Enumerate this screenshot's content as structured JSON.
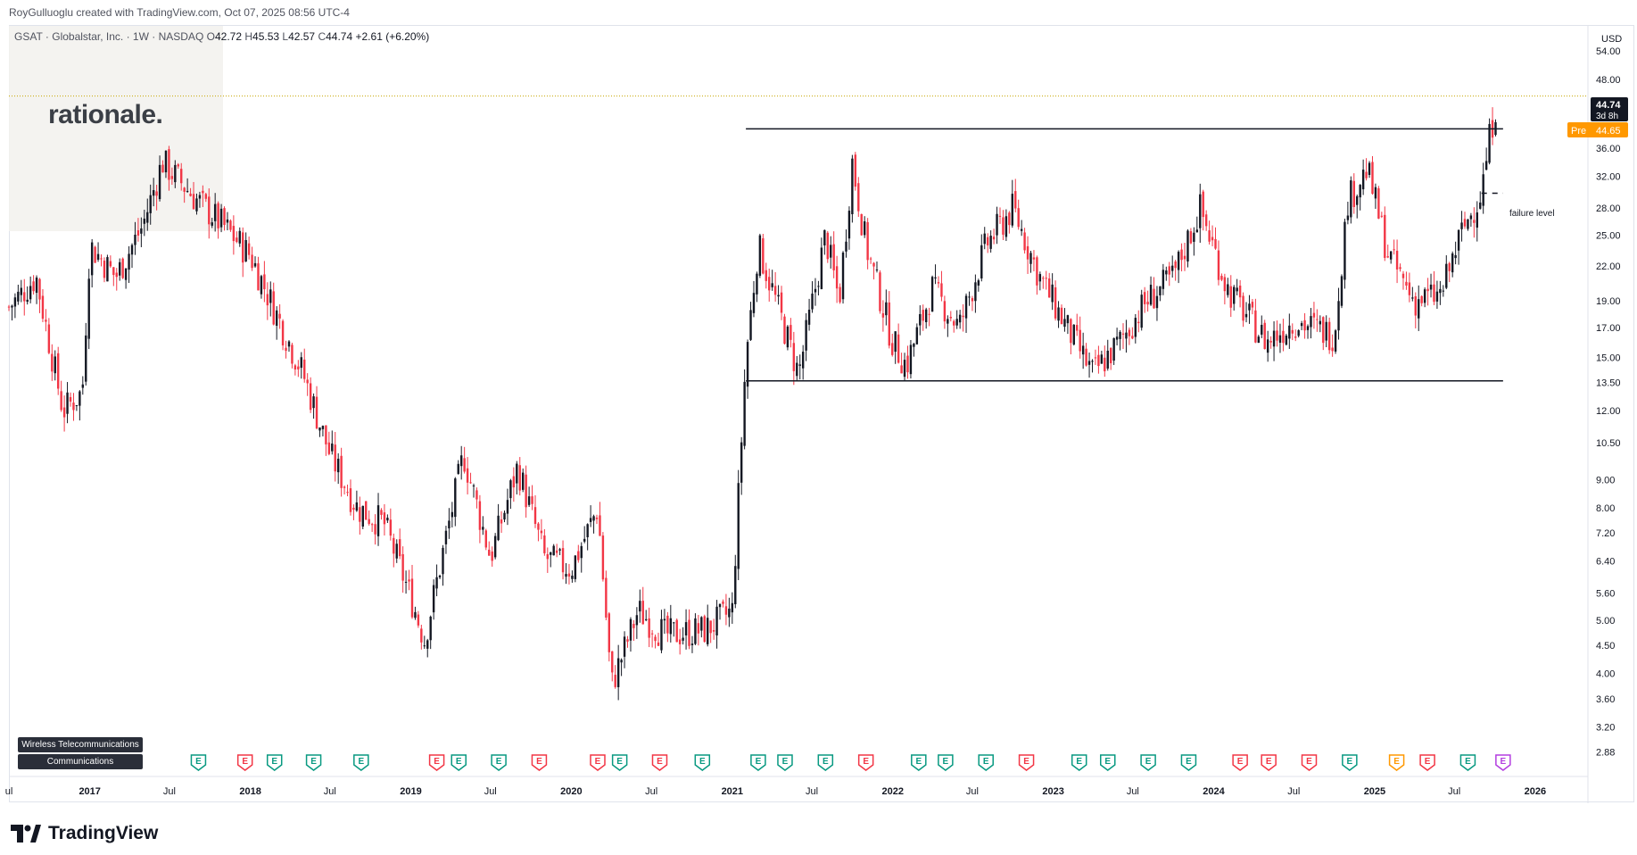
{
  "meta": {
    "created_line": "RoyGulluoglu created with TradingView.com, Oct 07, 2025 08:56 UTC-4"
  },
  "header": {
    "symbol": "GSAT · Globalstar, Inc. · 1W · NASDAQ",
    "open_label": "O",
    "open": "42.72",
    "high_label": "H",
    "high": "45.53",
    "low_label": "L",
    "low": "42.57",
    "close_label": "C",
    "close": "44.74",
    "change": "+2.61 (+6.20%)"
  },
  "watermark": {
    "text": "rationale."
  },
  "tags": [
    "Wireless Telecommunications",
    "Communications"
  ],
  "footer": {
    "brand": "TradingView"
  },
  "price_scale": {
    "currency": "USD",
    "last_price": "44.74",
    "countdown": "3d 8h",
    "pre_label": "Pre",
    "pre_price": "44.65"
  },
  "annotation": {
    "text": "failure level"
  },
  "colors": {
    "up": "#131722",
    "down": "#f23645",
    "earnings_green": "#089981",
    "earnings_red": "#f23645",
    "pre_badge": "#ff9800",
    "last_badge": "#131722"
  },
  "chart_data": {
    "type": "candlestick",
    "scale": "log",
    "ylim": [
      2.6,
      60
    ],
    "y_ticks": [
      54.0,
      48.0,
      36.0,
      32.0,
      28.0,
      25.0,
      22.0,
      19.0,
      17.0,
      15.0,
      13.5,
      12.0,
      10.5,
      9.0,
      8.0,
      7.2,
      6.4,
      5.6,
      5.0,
      4.5,
      4.0,
      3.6,
      3.2,
      2.88
    ],
    "y_tick_labels": [
      "54.00",
      "48.00",
      "36.00",
      "32.00",
      "28.00",
      "25.00",
      "22.00",
      "19.00",
      "17.00",
      "15.00",
      "13.50",
      "12.00",
      "10.50",
      "9.00",
      "8.00",
      "7.20",
      "6.40",
      "5.60",
      "5.00",
      "4.50",
      "4.00",
      "3.60",
      "3.20",
      "2.88"
    ],
    "x_range": [
      "2016-07-01",
      "2026-05-01"
    ],
    "x_ticks": [
      {
        "label": "ul",
        "date": "2016-07-01",
        "year": false
      },
      {
        "label": "2017",
        "date": "2017-01-01",
        "year": true
      },
      {
        "label": "Jul",
        "date": "2017-07-01",
        "year": false
      },
      {
        "label": "2018",
        "date": "2018-01-01",
        "year": true
      },
      {
        "label": "Jul",
        "date": "2018-07-01",
        "year": false
      },
      {
        "label": "2019",
        "date": "2019-01-01",
        "year": true
      },
      {
        "label": "Jul",
        "date": "2019-07-01",
        "year": false
      },
      {
        "label": "2020",
        "date": "2020-01-01",
        "year": true
      },
      {
        "label": "Jul",
        "date": "2020-07-01",
        "year": false
      },
      {
        "label": "2021",
        "date": "2021-01-01",
        "year": true
      },
      {
        "label": "Jul",
        "date": "2021-07-01",
        "year": false
      },
      {
        "label": "2022",
        "date": "2022-01-01",
        "year": true
      },
      {
        "label": "Jul",
        "date": "2022-07-01",
        "year": false
      },
      {
        "label": "2023",
        "date": "2023-01-01",
        "year": true
      },
      {
        "label": "Jul",
        "date": "2023-07-01",
        "year": false
      },
      {
        "label": "2024",
        "date": "2024-01-01",
        "year": true
      },
      {
        "label": "Jul",
        "date": "2024-07-01",
        "year": false
      },
      {
        "label": "2025",
        "date": "2025-01-01",
        "year": true
      },
      {
        "label": "Jul",
        "date": "2025-07-01",
        "year": false
      },
      {
        "label": "2026",
        "date": "2026-01-01",
        "year": true
      }
    ],
    "price_path": [
      [
        "2016-07-01",
        18.5
      ],
      [
        "2016-09-01",
        21.0
      ],
      [
        "2016-11-01",
        12.0
      ],
      [
        "2016-12-15",
        13.0
      ],
      [
        "2017-01-01",
        24.0
      ],
      [
        "2017-03-01",
        21.0
      ],
      [
        "2017-05-01",
        26.0
      ],
      [
        "2017-06-15",
        34.0
      ],
      [
        "2017-09-01",
        29.0
      ],
      [
        "2017-11-01",
        26.0
      ],
      [
        "2018-01-01",
        23.0
      ],
      [
        "2018-03-01",
        18.0
      ],
      [
        "2018-05-01",
        14.0
      ],
      [
        "2018-07-01",
        10.0
      ],
      [
        "2018-09-01",
        8.0
      ],
      [
        "2018-11-01",
        7.5
      ],
      [
        "2019-01-01",
        5.5
      ],
      [
        "2019-02-01",
        4.6
      ],
      [
        "2019-05-01",
        10.0
      ],
      [
        "2019-07-01",
        6.5
      ],
      [
        "2019-09-01",
        9.5
      ],
      [
        "2019-11-01",
        6.5
      ],
      [
        "2020-01-01",
        6.2
      ],
      [
        "2020-03-01",
        8.0
      ],
      [
        "2020-04-01",
        3.8
      ],
      [
        "2020-06-01",
        5.2
      ],
      [
        "2020-08-01",
        4.7
      ],
      [
        "2020-11-01",
        4.8
      ],
      [
        "2021-01-01",
        5.2
      ],
      [
        "2021-02-01",
        15.0
      ],
      [
        "2021-03-01",
        24.0
      ],
      [
        "2021-04-01",
        20.0
      ],
      [
        "2021-06-01",
        14.0
      ],
      [
        "2021-08-01",
        25.0
      ],
      [
        "2021-09-01",
        19.0
      ],
      [
        "2021-10-01",
        34.0
      ],
      [
        "2021-11-01",
        24.0
      ],
      [
        "2022-01-01",
        16.0
      ],
      [
        "2022-02-01",
        14.5
      ],
      [
        "2022-04-01",
        20.0
      ],
      [
        "2022-06-01",
        17.0
      ],
      [
        "2022-08-01",
        24.0
      ],
      [
        "2022-10-01",
        28.0
      ],
      [
        "2022-12-01",
        21.0
      ],
      [
        "2023-02-01",
        17.0
      ],
      [
        "2023-04-01",
        14.0
      ],
      [
        "2023-06-01",
        16.0
      ],
      [
        "2023-08-01",
        19.0
      ],
      [
        "2023-10-01",
        21.0
      ],
      [
        "2023-12-01",
        28.0
      ],
      [
        "2024-02-01",
        20.0
      ],
      [
        "2024-05-01",
        16.0
      ],
      [
        "2024-07-01",
        17.5
      ],
      [
        "2024-10-01",
        16.5
      ],
      [
        "2024-11-01",
        29.0
      ],
      [
        "2024-12-15",
        33.0
      ],
      [
        "2025-02-01",
        23.0
      ],
      [
        "2025-04-01",
        19.0
      ],
      [
        "2025-06-01",
        19.5
      ],
      [
        "2025-07-15",
        25.0
      ],
      [
        "2025-09-01",
        30.0
      ],
      [
        "2025-09-20",
        38.0
      ],
      [
        "2025-10-07",
        44.74
      ]
    ],
    "horizontal_lines": [
      {
        "name": "range-top",
        "y": 39.0,
        "from": "2021-02-01",
        "to": "2025-10-20",
        "style": "solid"
      },
      {
        "name": "range-bottom",
        "y": 13.6,
        "from": "2021-02-01",
        "to": "2025-10-20",
        "style": "solid"
      },
      {
        "name": "failure-level",
        "y": 29.8,
        "from": "2025-09-01",
        "to": "2025-10-20",
        "style": "dashed"
      },
      {
        "name": "last-price-line",
        "y": 44.74,
        "from": "2016-07-01",
        "to": "2026-05-01",
        "style": "dotted"
      }
    ],
    "earnings_markers": [
      {
        "date": "2017-09-05",
        "type": "green"
      },
      {
        "date": "2017-12-20",
        "type": "red"
      },
      {
        "date": "2018-02-25",
        "type": "green"
      },
      {
        "date": "2018-05-25",
        "type": "green"
      },
      {
        "date": "2018-09-10",
        "type": "green"
      },
      {
        "date": "2019-03-01",
        "type": "red"
      },
      {
        "date": "2019-04-20",
        "type": "green"
      },
      {
        "date": "2019-07-20",
        "type": "green"
      },
      {
        "date": "2019-10-20",
        "type": "red"
      },
      {
        "date": "2020-03-01",
        "type": "red"
      },
      {
        "date": "2020-04-20",
        "type": "green"
      },
      {
        "date": "2020-07-20",
        "type": "red"
      },
      {
        "date": "2020-10-25",
        "type": "green"
      },
      {
        "date": "2021-03-01",
        "type": "green"
      },
      {
        "date": "2021-05-01",
        "type": "green"
      },
      {
        "date": "2021-08-01",
        "type": "green"
      },
      {
        "date": "2021-11-01",
        "type": "red"
      },
      {
        "date": "2022-03-01",
        "type": "green"
      },
      {
        "date": "2022-05-01",
        "type": "green"
      },
      {
        "date": "2022-08-01",
        "type": "green"
      },
      {
        "date": "2022-11-01",
        "type": "red"
      },
      {
        "date": "2023-03-01",
        "type": "green"
      },
      {
        "date": "2023-05-05",
        "type": "green"
      },
      {
        "date": "2023-08-05",
        "type": "green"
      },
      {
        "date": "2023-11-05",
        "type": "green"
      },
      {
        "date": "2024-03-01",
        "type": "red"
      },
      {
        "date": "2024-05-05",
        "type": "red"
      },
      {
        "date": "2024-08-05",
        "type": "red"
      },
      {
        "date": "2024-11-05",
        "type": "green"
      },
      {
        "date": "2025-02-20",
        "type": "orange"
      },
      {
        "date": "2025-05-01",
        "type": "red"
      },
      {
        "date": "2025-08-01",
        "type": "green"
      },
      {
        "date": "2025-10-20",
        "type": "purple"
      }
    ]
  }
}
